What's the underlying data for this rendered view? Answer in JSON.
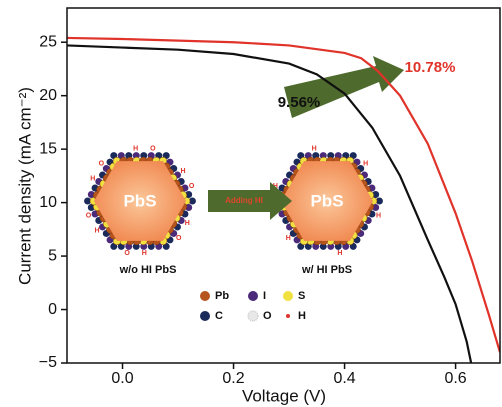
{
  "chart_data": {
    "type": "line",
    "x_label": "Voltage (V)",
    "y_label": "Current density (mA cm⁻²)",
    "xlim": [
      -0.1,
      0.68
    ],
    "ylim": [
      -5,
      28.2
    ],
    "xticks": [
      {
        "value": 0,
        "label": "0.0"
      },
      0.2,
      0.4,
      0.6
    ],
    "yticks": [
      {
        "value": -5,
        "label": "−5"
      },
      0,
      5,
      10,
      15,
      20,
      25
    ],
    "series": [
      {
        "name": "w/o HI PbS",
        "color": "#111111",
        "x": [
          -0.1,
          0,
          0.1,
          0.2,
          0.3,
          0.35,
          0.4,
          0.45,
          0.5,
          0.55,
          0.58,
          0.6,
          0.62,
          0.628
        ],
        "values": [
          24.7,
          24.5,
          24.3,
          23.9,
          23.0,
          22.0,
          20.2,
          17.0,
          12.5,
          6.5,
          3.0,
          0.5,
          -3,
          -5
        ]
      },
      {
        "name": "w/ HI PbS",
        "color": "#e0332a",
        "x": [
          -0.1,
          0,
          0.2,
          0.3,
          0.4,
          0.43,
          0.46,
          0.5,
          0.55,
          0.6,
          0.63,
          0.66,
          0.68
        ],
        "values": [
          25.4,
          25.3,
          25.0,
          24.7,
          24.0,
          23.5,
          22.3,
          20.0,
          15.5,
          9.0,
          4.5,
          -0.5,
          -4
        ]
      }
    ],
    "annotations": [
      {
        "text": "9.56%",
        "color": "#111111"
      },
      {
        "text": "10.78%",
        "color": "#e0332a"
      }
    ],
    "inset": {
      "core_label": "PbS",
      "arrow_label": "Adding HI",
      "atoms": [
        {
          "name": "Pb",
          "color": "#b5541c"
        },
        {
          "name": "I",
          "color": "#4b2a7a"
        },
        {
          "name": "S",
          "color": "#f0e040"
        },
        {
          "name": "C",
          "color": "#1a2a5a"
        },
        {
          "name": "O",
          "color": "#e8e8e8"
        },
        {
          "name": "H",
          "color": "#e0332a"
        }
      ]
    }
  }
}
